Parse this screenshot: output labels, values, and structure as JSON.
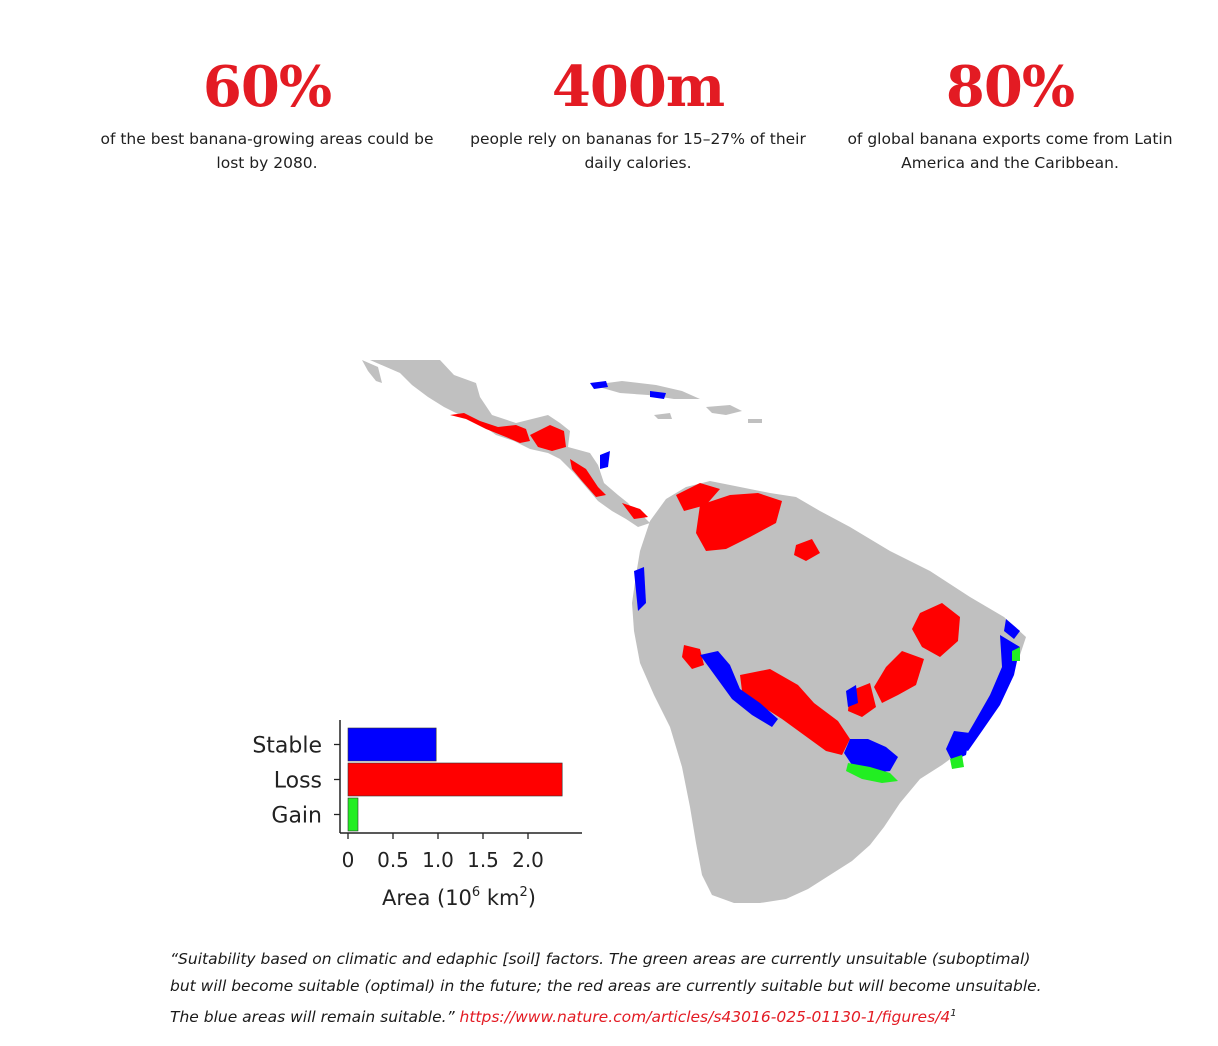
{
  "stats": [
    {
      "value": "60%",
      "line1": "of the best banana-growing areas could be",
      "line2": "lost by 2080."
    },
    {
      "value": "400m",
      "line1": "people rely on bananas for 15–27% of their",
      "line2": "daily calories."
    },
    {
      "value": "80%",
      "line1": "of global banana exports come from Latin",
      "line2": "America and the Caribbean."
    }
  ],
  "figure": {
    "map_colors": {
      "land": "#c0c0c0",
      "stable": "#0000ff",
      "loss": "#ff0000",
      "gain": "#22ee22"
    },
    "chart_data": {
      "type": "bar",
      "orientation": "horizontal",
      "categories": [
        "Stable",
        "Loss",
        "Gain"
      ],
      "values": [
        0.98,
        2.38,
        0.1
      ],
      "colors": [
        "#0000ff",
        "#ff0000",
        "#22ee22"
      ],
      "xlim": [
        0,
        2.5
      ],
      "xticks": [
        "0",
        "0.5",
        "1.0",
        "1.5",
        "2.0"
      ],
      "xlabel_prefix": "Area (10",
      "xlabel_exp1": "6",
      "xlabel_mid": " km",
      "xlabel_exp2": "2",
      "xlabel_suffix": ")"
    }
  },
  "caption": {
    "line1": "“Suitability based on climatic and edaphic [soil] factors. The green areas are currently unsuitable (suboptimal)",
    "line2": "but will become suitable (optimal) in the future; the red areas are currently suitable but will become unsuitable.",
    "line3_text": "The blue areas will remain suitable.” ",
    "link": "https://www.nature.com/articles/s43016-025-01130-1/figures/4",
    "footnote": "1"
  }
}
